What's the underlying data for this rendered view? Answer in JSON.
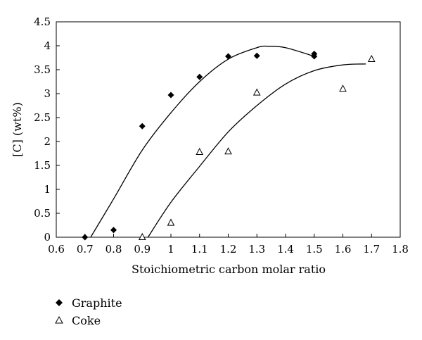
{
  "chart_data": {
    "type": "scatter",
    "title": "",
    "xlabel": "Stoichiometric carbon molar ratio",
    "ylabel": "[C] (wt%)",
    "xlim": [
      0.6,
      1.8
    ],
    "ylim": [
      0,
      4.5
    ],
    "xticks": [
      "0.6",
      "0.7",
      "0.8",
      "0.9",
      "1",
      "1.1",
      "1.2",
      "1.3",
      "1.4",
      "1.5",
      "1.6",
      "1.7",
      "1.8"
    ],
    "yticks": [
      "0",
      "0.5",
      "1",
      "1.5",
      "2",
      "2.5",
      "3",
      "3.5",
      "4",
      "4.5"
    ],
    "grid": false,
    "legend_position": "bottom-left",
    "series": [
      {
        "name": "Graphite",
        "marker": "diamond",
        "color": "#000000",
        "points": [
          {
            "x": 0.7,
            "y": 0.0
          },
          {
            "x": 0.8,
            "y": 0.15
          },
          {
            "x": 0.9,
            "y": 2.32
          },
          {
            "x": 1.0,
            "y": 2.97
          },
          {
            "x": 1.1,
            "y": 3.35
          },
          {
            "x": 1.2,
            "y": 3.78
          },
          {
            "x": 1.3,
            "y": 3.79
          },
          {
            "x": 1.5,
            "y": 3.78
          },
          {
            "x": 1.5,
            "y": 3.83
          }
        ],
        "trendline": [
          {
            "x": 0.72,
            "y": 0.0
          },
          {
            "x": 0.8,
            "y": 0.8
          },
          {
            "x": 0.9,
            "y": 1.82
          },
          {
            "x": 1.0,
            "y": 2.6
          },
          {
            "x": 1.1,
            "y": 3.25
          },
          {
            "x": 1.2,
            "y": 3.72
          },
          {
            "x": 1.3,
            "y": 3.96
          },
          {
            "x": 1.34,
            "y": 3.99
          },
          {
            "x": 1.4,
            "y": 3.96
          },
          {
            "x": 1.5,
            "y": 3.78
          }
        ]
      },
      {
        "name": "Coke",
        "marker": "triangle-open",
        "color": "#000000",
        "points": [
          {
            "x": 0.9,
            "y": 0.0
          },
          {
            "x": 1.0,
            "y": 0.3
          },
          {
            "x": 1.1,
            "y": 1.78
          },
          {
            "x": 1.2,
            "y": 1.79
          },
          {
            "x": 1.3,
            "y": 3.02
          },
          {
            "x": 1.6,
            "y": 3.1
          },
          {
            "x": 1.7,
            "y": 3.72
          }
        ],
        "trendline": [
          {
            "x": 0.92,
            "y": 0.0
          },
          {
            "x": 1.0,
            "y": 0.73
          },
          {
            "x": 1.1,
            "y": 1.48
          },
          {
            "x": 1.2,
            "y": 2.2
          },
          {
            "x": 1.3,
            "y": 2.75
          },
          {
            "x": 1.4,
            "y": 3.2
          },
          {
            "x": 1.5,
            "y": 3.48
          },
          {
            "x": 1.6,
            "y": 3.6
          },
          {
            "x": 1.68,
            "y": 3.62
          }
        ]
      }
    ]
  }
}
